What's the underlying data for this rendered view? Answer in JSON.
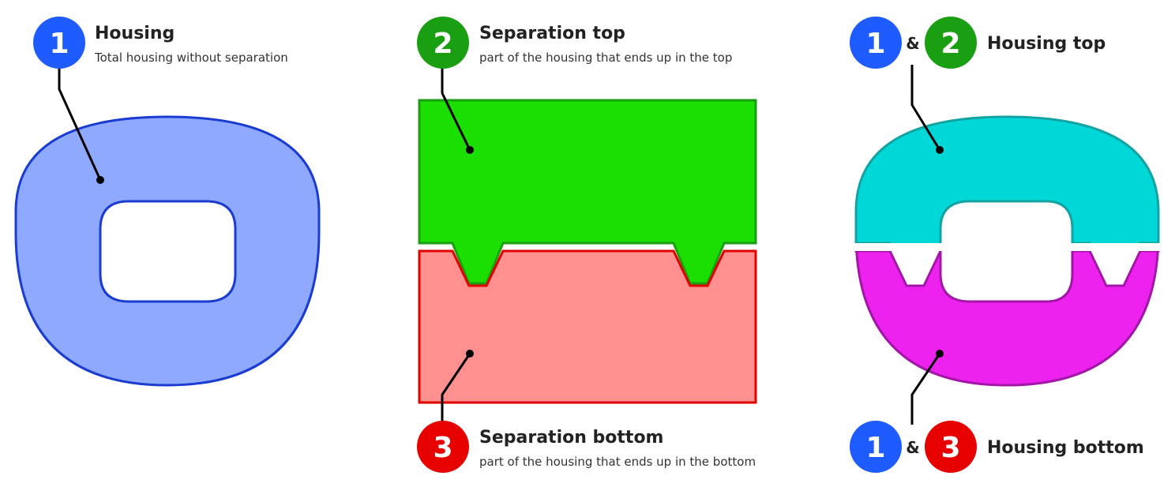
{
  "colors": {
    "blue_badge": "#1f5cff",
    "green_badge": "#1a9e12",
    "red_badge": "#e60000",
    "housing_fill": "#8fa9ff",
    "housing_stroke": "#1a3cd0",
    "sep_top_fill": "#1adf00",
    "sep_top_stroke": "#1a9e12",
    "sep_bottom_fill": "#ff9090",
    "sep_bottom_stroke": "#e00000",
    "housing_top_fill": "#00d8d8",
    "housing_top_stroke": "#14a3a3",
    "housing_bottom_fill": "#ee22ee",
    "housing_bottom_stroke": "#a416a8"
  },
  "housing": {
    "badge": "1",
    "title": "Housing",
    "description": "Total housing without separation"
  },
  "separation_top": {
    "badge": "2",
    "title": "Separation top",
    "description": "part of the housing that ends up in the top"
  },
  "separation_bottom": {
    "badge": "3",
    "title": "Separation bottom",
    "description": "part of the housing that ends up in the bottom"
  },
  "housing_top": {
    "badge_a": "1",
    "ampersand": "&",
    "badge_b": "2",
    "title": "Housing top"
  },
  "housing_bottom": {
    "badge_a": "1",
    "ampersand": "&",
    "badge_b": "3",
    "title": "Housing bottom"
  }
}
